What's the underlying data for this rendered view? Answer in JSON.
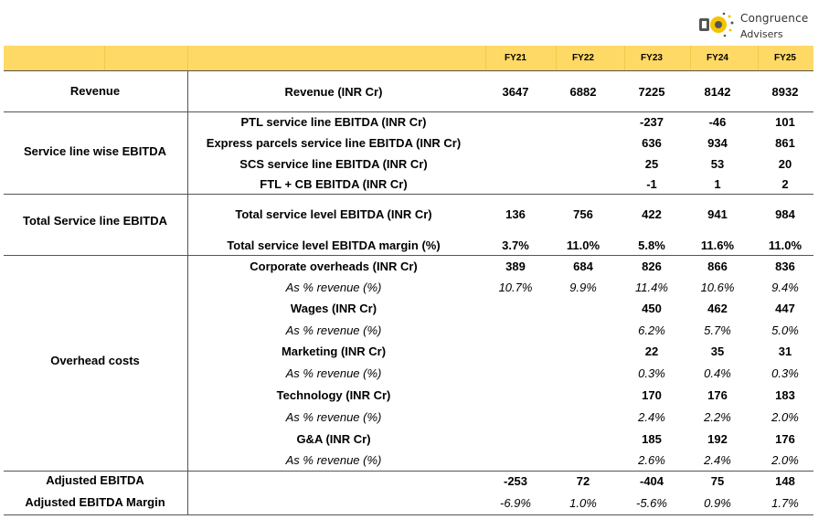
{
  "logo": {
    "line1": "Congruence",
    "line2": "Advisers"
  },
  "years": [
    "FY21",
    "FY22",
    "FY23",
    "FY24",
    "FY25"
  ],
  "sections": {
    "revenue": "Revenue",
    "service_line": "Service line wise EBITDA",
    "total_service": "Total Service line EBITDA",
    "overhead": "Overhead costs",
    "adj_ebitda": "Adjusted EBITDA",
    "adj_margin": "Adjusted EBITDA Margin"
  },
  "rows": [
    {
      "label": "Revenue (INR Cr)",
      "italic": false,
      "values": [
        "3647",
        "6882",
        "7225",
        "8142",
        "8932"
      ]
    },
    {
      "label": "PTL service line EBITDA (INR Cr)",
      "italic": false,
      "values": [
        "",
        "",
        "-237",
        "-46",
        "101"
      ]
    },
    {
      "label": "Express parcels service line EBITDA (INR Cr)",
      "italic": false,
      "values": [
        "",
        "",
        "636",
        "934",
        "861"
      ]
    },
    {
      "label": "SCS service line EBITDA (INR Cr)",
      "italic": false,
      "values": [
        "",
        "",
        "25",
        "53",
        "20"
      ]
    },
    {
      "label": "FTL + CB EBITDA (INR Cr)",
      "italic": false,
      "values": [
        "",
        "",
        "-1",
        "1",
        "2"
      ]
    },
    {
      "label": "Total service level EBITDA (INR Cr)",
      "italic": false,
      "values": [
        "136",
        "756",
        "422",
        "941",
        "984"
      ]
    },
    {
      "label": "Total service level EBITDA margin (%)",
      "italic": false,
      "values": [
        "3.7%",
        "11.0%",
        "5.8%",
        "11.6%",
        "11.0%"
      ]
    },
    {
      "label": "Corporate overheads (INR Cr)",
      "italic": false,
      "values": [
        "389",
        "684",
        "826",
        "866",
        "836"
      ]
    },
    {
      "label": "As % revenue (%)",
      "italic": true,
      "values": [
        "10.7%",
        "9.9%",
        "11.4%",
        "10.6%",
        "9.4%"
      ]
    },
    {
      "label": "Wages (INR Cr)",
      "italic": false,
      "values": [
        "",
        "",
        "450",
        "462",
        "447"
      ]
    },
    {
      "label": "As % revenue (%)",
      "italic": true,
      "values": [
        "",
        "",
        "6.2%",
        "5.7%",
        "5.0%"
      ]
    },
    {
      "label": "Marketing (INR Cr)",
      "italic": false,
      "values": [
        "",
        "",
        "22",
        "35",
        "31"
      ]
    },
    {
      "label": "As % revenue (%)",
      "italic": true,
      "values": [
        "",
        "",
        "0.3%",
        "0.4%",
        "0.3%"
      ]
    },
    {
      "label": "Technology (INR Cr)",
      "italic": false,
      "values": [
        "",
        "",
        "170",
        "176",
        "183"
      ]
    },
    {
      "label": "As % revenue (%)",
      "italic": true,
      "values": [
        "",
        "",
        "2.4%",
        "2.2%",
        "2.0%"
      ]
    },
    {
      "label": "G&A (INR Cr)",
      "italic": false,
      "values": [
        "",
        "",
        "185",
        "192",
        "176"
      ]
    },
    {
      "label": "As % revenue (%)",
      "italic": true,
      "values": [
        "",
        "",
        "2.6%",
        "2.4%",
        "2.0%"
      ]
    },
    {
      "label": "",
      "italic": false,
      "values": [
        "-253",
        "72",
        "-404",
        "75",
        "148"
      ]
    },
    {
      "label": "",
      "italic": true,
      "values": [
        "-6.9%",
        "1.0%",
        "-5.6%",
        "0.9%",
        "1.7%"
      ]
    }
  ]
}
